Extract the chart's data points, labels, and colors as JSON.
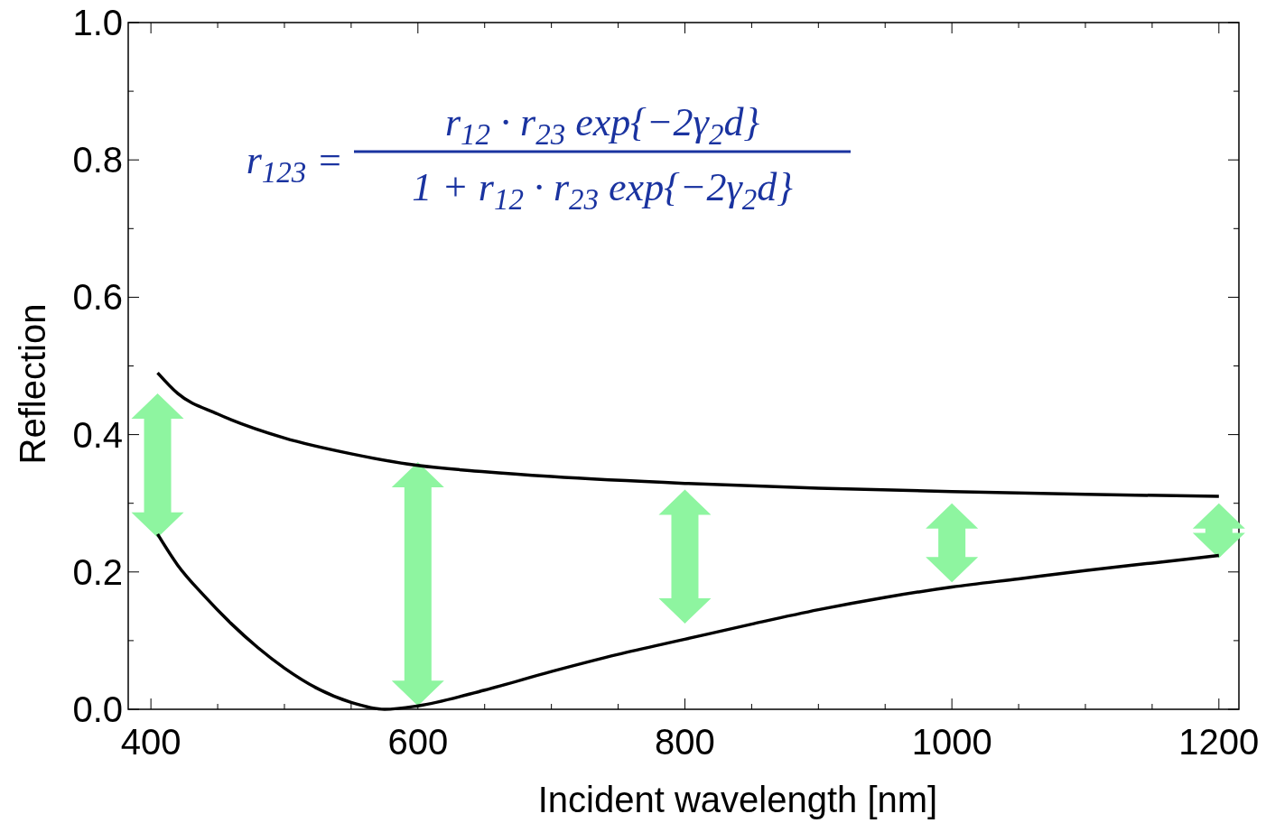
{
  "chart_data": {
    "type": "line",
    "xlabel": "Incident wavelength [nm]",
    "ylabel": "Reflection",
    "xlim": [
      383,
      1215
    ],
    "ylim": [
      0,
      1
    ],
    "xticks": [
      400,
      {
        "value": 450,
        "label": null
      },
      {
        "value": 500,
        "label": null
      },
      {
        "value": 550,
        "label": null
      },
      600,
      {
        "value": 650,
        "label": null
      },
      {
        "value": 700,
        "label": null
      },
      {
        "value": 750,
        "label": null
      },
      800,
      {
        "value": 850,
        "label": null
      },
      {
        "value": 900,
        "label": null
      },
      {
        "value": 950,
        "label": null
      },
      1000,
      {
        "value": 1050,
        "label": null
      },
      {
        "value": 1100,
        "label": null
      },
      {
        "value": 1150,
        "label": null
      },
      1200
    ],
    "yticks": [
      {
        "value": 0,
        "label": "0.0"
      },
      {
        "value": 0.1,
        "label": null
      },
      0.2,
      {
        "value": 0.3,
        "label": null
      },
      0.4,
      {
        "value": 0.5,
        "label": null
      },
      0.6,
      {
        "value": 0.7,
        "label": null
      },
      0.8,
      {
        "value": 0.9,
        "label": null
      },
      {
        "value": 1,
        "label": "1.0"
      }
    ],
    "grid": false,
    "line_style": "solid",
    "marker": "none",
    "annotations": [
      "r$_{123}$ =",
      "r$_{12}$ · r$_{23}$ exp{−2γ$_{2}$d}",
      "1 + r$_{12}$ · r$_{23}$ exp{−2γ$_{2}$d}"
    ],
    "series": [
      {
        "color": "#000000",
        "x": [
          405,
          420,
          450,
          500,
          550,
          600,
          650,
          700,
          800,
          900,
          1000,
          1100,
          1200
        ],
        "values": [
          0.49,
          0.46,
          0.43,
          0.395,
          0.372,
          0.355,
          0.346,
          0.339,
          0.329,
          0.322,
          0.317,
          0.313,
          0.31
        ]
      },
      {
        "color": "#000000",
        "x": [
          405,
          420,
          440,
          460,
          480,
          500,
          525,
          550,
          575,
          600,
          650,
          700,
          750,
          800,
          850,
          900,
          950,
          1000,
          1050,
          1100,
          1150,
          1200
        ],
        "values": [
          0.255,
          0.21,
          0.165,
          0.125,
          0.09,
          0.06,
          0.03,
          0.01,
          0,
          0.005,
          0.028,
          0.055,
          0.08,
          0.102,
          0.124,
          0.145,
          0.163,
          0.178,
          0.19,
          0.202,
          0.213,
          0.224
        ]
      }
    ]
  }
}
